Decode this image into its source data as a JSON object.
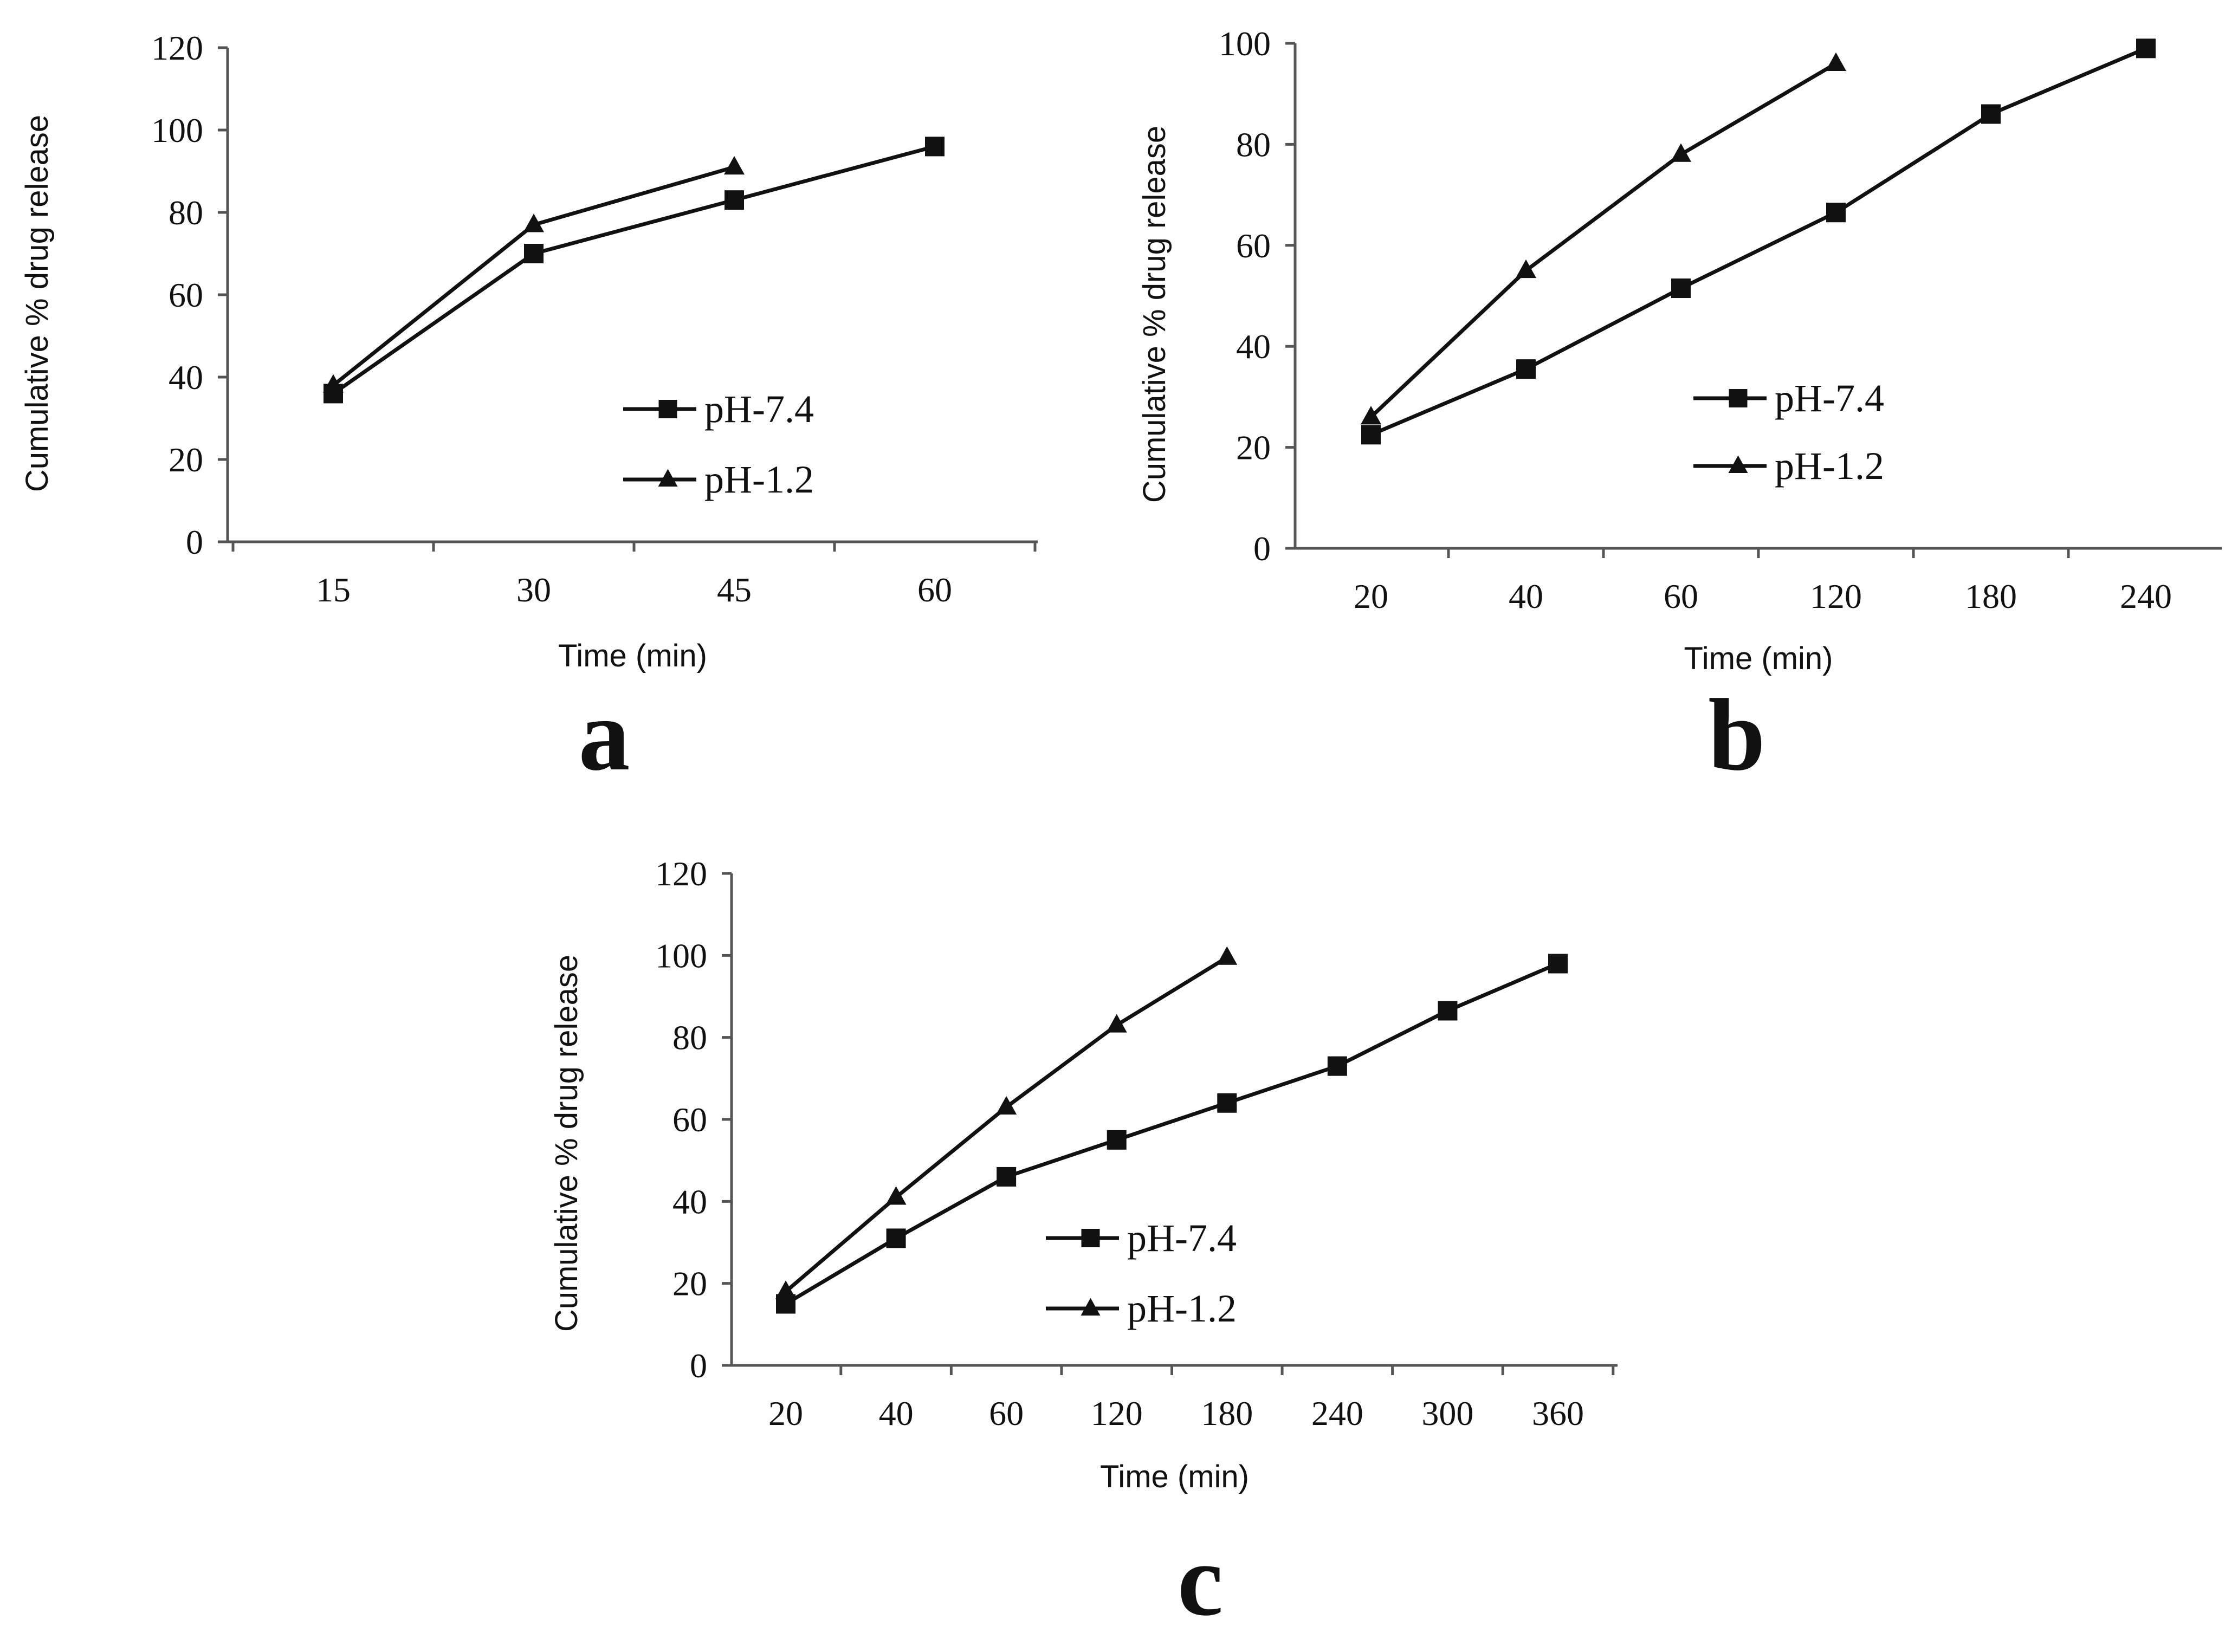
{
  "chart_data": [
    {
      "type": "line",
      "panel_label": "a",
      "categories": [
        "15",
        "30",
        "45",
        "60"
      ],
      "xlabel": "Time  (min)",
      "ylabel": "Cumulative % drug release",
      "ylim": [
        0,
        120
      ],
      "yticks": [
        "0",
        "20",
        "40",
        "60",
        "80",
        "100",
        "120"
      ],
      "legend_position": "center-right",
      "series": [
        {
          "name": "pH-7.4",
          "marker": "square",
          "values": [
            36,
            70,
            83,
            96
          ]
        },
        {
          "name": "pH-1.2",
          "marker": "triangle",
          "values": [
            38,
            77,
            91,
            null
          ]
        }
      ]
    },
    {
      "type": "line",
      "panel_label": "b",
      "categories": [
        "20",
        "40",
        "60",
        "120",
        "180",
        "240"
      ],
      "xlabel": "Time  (min)",
      "ylabel": "Cumulative % drug release",
      "ylim": [
        0,
        100
      ],
      "yticks": [
        "0",
        "20",
        "40",
        "60",
        "80",
        "100"
      ],
      "legend_position": "center-right",
      "series": [
        {
          "name": "pH-7.4",
          "marker": "square",
          "values": [
            22.5,
            35.5,
            51.5,
            66.5,
            86,
            99
          ]
        },
        {
          "name": "pH-1.2",
          "marker": "triangle",
          "values": [
            26,
            55,
            78,
            96,
            null,
            null
          ]
        }
      ]
    },
    {
      "type": "line",
      "panel_label": "c",
      "categories": [
        "20",
        "40",
        "60",
        "120",
        "180",
        "240",
        "300",
        "360"
      ],
      "xlabel": "Time  (min)",
      "ylabel": "Cumulative % drug release",
      "ylim": [
        0,
        120
      ],
      "yticks": [
        "0",
        "20",
        "40",
        "60",
        "80",
        "100",
        "120"
      ],
      "legend_position": "bottom-center",
      "series": [
        {
          "name": "pH-7.4",
          "marker": "square",
          "values": [
            15,
            31,
            46,
            55,
            64,
            73,
            86.5,
            98
          ]
        },
        {
          "name": "pH-1.2",
          "marker": "triangle",
          "values": [
            18,
            41,
            63,
            83,
            99.5,
            null,
            null,
            null
          ]
        }
      ]
    }
  ]
}
